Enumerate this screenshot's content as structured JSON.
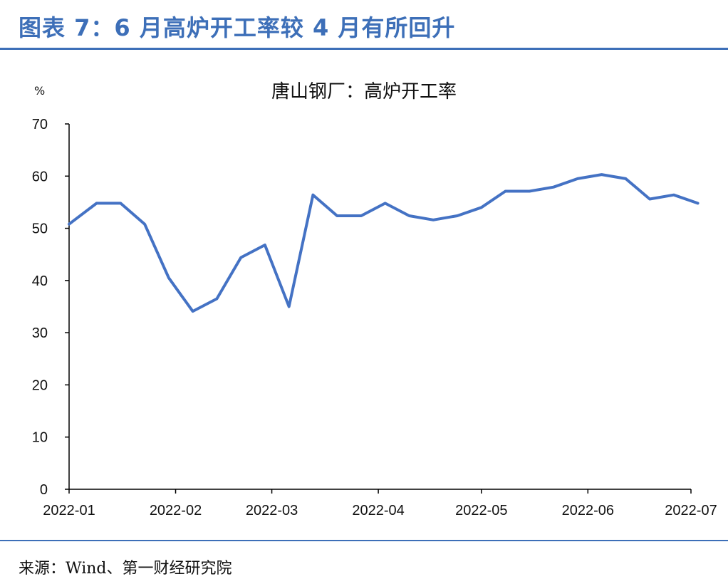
{
  "header": {
    "title": "图表 7：6 月高炉开工率较 4 月有所回升"
  },
  "source": "来源：Wind、第一财经研究院",
  "colors": {
    "accent": "#3d6fb8",
    "line": "#4472c4",
    "axis": "#000000"
  },
  "chart_data": {
    "type": "line",
    "title": "唐山钢厂：高炉开工率",
    "unit": "%",
    "xlabel": "",
    "ylabel": "",
    "ylim": [
      0,
      70
    ],
    "yticks": [
      0,
      10,
      20,
      30,
      40,
      50,
      60,
      70
    ],
    "xlim": [
      "2022-01-01",
      "2022-07-01"
    ],
    "x_tick_labels": [
      "2022-01",
      "2022-02",
      "2022-03",
      "2022-04",
      "2022-05",
      "2022-06",
      "2022-07"
    ],
    "grid": false,
    "legend": "none",
    "series": [
      {
        "x": [
          "2022-01-01",
          "2022-01-09",
          "2022-01-16",
          "2022-01-23",
          "2022-01-30",
          "2022-02-06",
          "2022-02-13",
          "2022-02-20",
          "2022-02-27",
          "2022-03-06",
          "2022-03-13",
          "2022-03-20",
          "2022-03-27",
          "2022-04-03",
          "2022-04-10",
          "2022-04-17",
          "2022-04-24",
          "2022-05-01",
          "2022-05-08",
          "2022-05-15",
          "2022-05-22",
          "2022-05-29",
          "2022-06-05",
          "2022-06-12",
          "2022-06-19",
          "2022-06-26",
          "2022-07-03"
        ],
        "values": [
          50.8,
          54.8,
          54.8,
          50.8,
          40.5,
          34.1,
          36.5,
          44.4,
          46.8,
          35.0,
          56.4,
          52.4,
          52.4,
          54.8,
          52.4,
          51.6,
          52.4,
          54.0,
          57.1,
          57.1,
          57.9,
          59.5,
          60.3,
          59.5,
          55.6,
          56.4,
          54.8
        ]
      }
    ]
  }
}
